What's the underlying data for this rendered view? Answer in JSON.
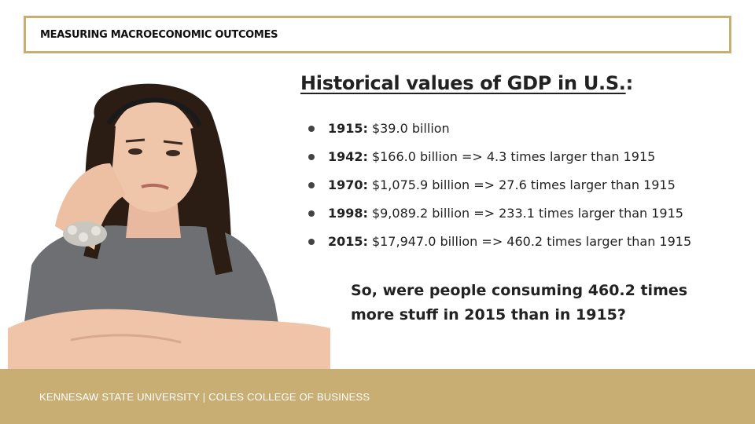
{
  "header": {
    "label": "MEASURING MACROECONOMIC OUTCOMES"
  },
  "slide": {
    "title_main": "Historical values of GDP in U.S.",
    "title_suffix": ":",
    "items": [
      {
        "year": "1915:",
        "text": "$39.0 billion"
      },
      {
        "year": "1942:",
        "text": "$166.0 billion => 4.3 times larger than 1915"
      },
      {
        "year": "1970:",
        "text": "$1,075.9 billion => 27.6 times larger than 1915"
      },
      {
        "year": "1998:",
        "text": "$9,089.2 billion => 233.1 times larger than 1915"
      },
      {
        "year": "2015:",
        "text": "$17,947.0 billion => 460.2 times larger than 1915"
      }
    ],
    "question": "So, were people consuming 460.2 times more stuff in 2015 than in 1915?"
  },
  "footer": {
    "text": "KENNESAW STATE UNIVERSITY | COLES COLLEGE OF BUSINESS"
  },
  "colors": {
    "accent": "#c9ae74",
    "text": "#222222"
  }
}
